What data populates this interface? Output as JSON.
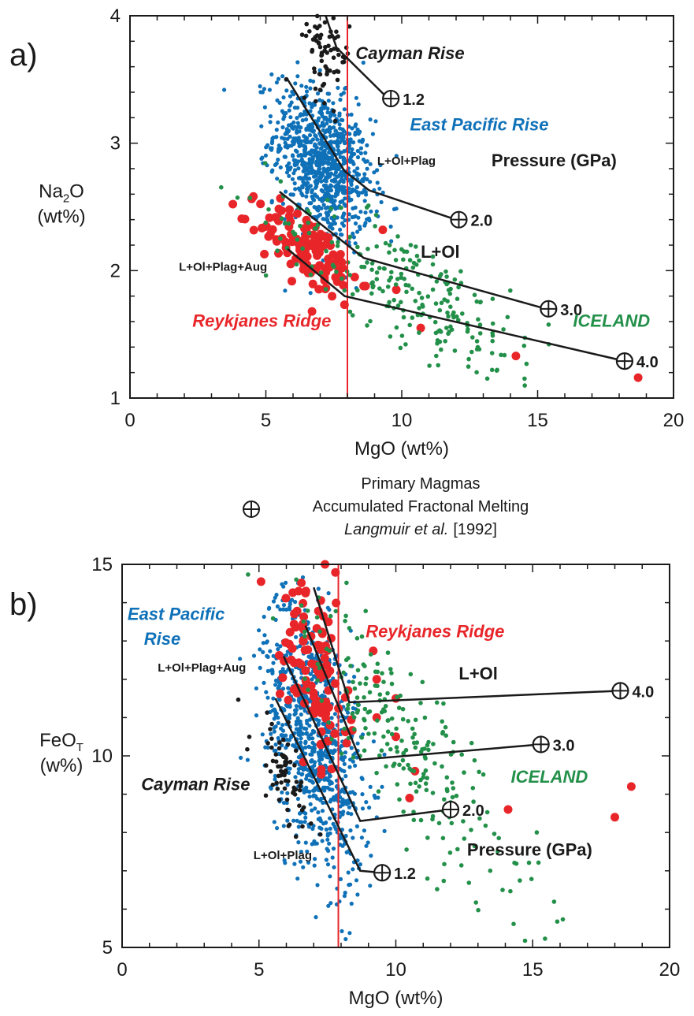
{
  "panels": [
    {
      "label": "a)",
      "legend": {
        "heading": "Primary Magmas",
        "line2": "Accumulated Fractonal Melting",
        "citation_author": "Langmuir et al.",
        "citation_year": "[1992]"
      }
    },
    {
      "label": "b)"
    }
  ],
  "colors": {
    "east_pacific_rise": "#0f71b8",
    "reykjanes_ridge": "#e8262a",
    "iceland": "#23904a",
    "cayman_rise": "#1a1a1a",
    "vertical_line": "#e8262a",
    "paths": "#1a1a1a"
  },
  "chart_data": [
    {
      "type": "scatter",
      "panel": "a)",
      "xlabel": "MgO   (wt%)",
      "ylabel": "Na2O (wt%)",
      "ylabel_parts": {
        "main": "Na",
        "sub": "2",
        "rest": "O",
        "unit": "(wt%)"
      },
      "xlim": [
        0,
        20
      ],
      "ylim": [
        1,
        4
      ],
      "x_ticks": [
        0,
        5,
        10,
        15,
        20
      ],
      "y_ticks": [
        1,
        2,
        3,
        4
      ],
      "grid": false,
      "vertical_line_x": 8,
      "series": [
        {
          "name": "East Pacific Rise",
          "color": "#0f71b8",
          "center": [
            7.1,
            2.85
          ],
          "spread": [
            0.9,
            0.28
          ],
          "count": 900,
          "radius": 2.6
        },
        {
          "name": "Reykjanes Ridge",
          "color": "#e8262a",
          "center": [
            6.6,
            2.15
          ],
          "spread": [
            0.9,
            0.14
          ],
          "count": 120,
          "radius": 5.5,
          "outliers": [
            [
              9.3,
              2.32
            ],
            [
              9.8,
              1.85
            ],
            [
              10.7,
              1.55
            ],
            [
              6.7,
              1.68
            ],
            [
              14.2,
              1.33
            ],
            [
              18.7,
              1.16
            ]
          ]
        },
        {
          "name": "ICELAND",
          "color": "#23904a",
          "center": [
            10.3,
            1.85
          ],
          "spread": [
            2.6,
            0.22
          ],
          "count": 240,
          "radius": 2.8
        },
        {
          "name": "Cayman Rise",
          "color": "#1a1a1a",
          "center": [
            7.2,
            3.75
          ],
          "spread": [
            0.45,
            0.2
          ],
          "count": 70,
          "radius": 2.8
        }
      ],
      "paths": [
        {
          "points": [
            [
              7.2,
              4.0
            ],
            [
              7.6,
              3.75
            ],
            [
              9.5,
              3.35
            ]
          ]
        },
        {
          "points": [
            [
              5.8,
              3.5
            ],
            [
              7.9,
              2.78
            ],
            [
              8.8,
              2.63
            ],
            [
              12.0,
              2.4
            ]
          ]
        },
        {
          "points": [
            [
              5.5,
              2.62
            ],
            [
              8.6,
              2.1
            ],
            [
              15.3,
              1.7
            ]
          ]
        },
        {
          "points": [
            [
              5.8,
              2.17
            ],
            [
              7.9,
              1.8
            ],
            [
              18.2,
              1.29
            ]
          ]
        }
      ],
      "pressure_markers": [
        {
          "x": 9.6,
          "y": 3.35,
          "label": "1.2"
        },
        {
          "x": 12.1,
          "y": 2.4,
          "label": "2.0"
        },
        {
          "x": 15.4,
          "y": 1.7,
          "label": "3.0"
        },
        {
          "x": 18.2,
          "y": 1.29,
          "label": "4.0"
        }
      ],
      "annotations": [
        {
          "text": "Cayman Rise",
          "x": 8.3,
          "y": 3.66,
          "color": "#1a1a1a",
          "italic": true,
          "size": 22
        },
        {
          "text": "East Pacific Rise",
          "x": 10.3,
          "y": 3.1,
          "color": "#0f71b8",
          "italic": true,
          "size": 22
        },
        {
          "text": "L+Ol+Plag",
          "x": 9.1,
          "y": 2.83,
          "color": "#1a1a1a",
          "italic": false,
          "size": 15
        },
        {
          "text": "Pressure  (GPa)",
          "x": 13.3,
          "y": 2.82,
          "color": "#1a1a1a",
          "italic": false,
          "size": 22
        },
        {
          "text": "L+Ol",
          "x": 10.7,
          "y": 2.1,
          "color": "#1a1a1a",
          "italic": false,
          "size": 22
        },
        {
          "text": "L+Ol+Plag+Aug",
          "x": 1.8,
          "y": 2.0,
          "color": "#1a1a1a",
          "italic": false,
          "size": 15
        },
        {
          "text": "Reykjanes Ridge",
          "x": 2.3,
          "y": 1.56,
          "color": "#e8262a",
          "italic": true,
          "size": 22
        },
        {
          "text": "ICELAND",
          "x": 16.3,
          "y": 1.56,
          "color": "#23904a",
          "italic": true,
          "size": 22
        }
      ]
    },
    {
      "type": "scatter",
      "panel": "b)",
      "xlabel": "MgO   (wt%)",
      "ylabel": "FeOT (w%)",
      "ylabel_parts": {
        "main": "FeO",
        "sub": "T",
        "rest": "",
        "unit": "(w%)"
      },
      "xlim": [
        0,
        20
      ],
      "ylim": [
        5,
        15
      ],
      "x_ticks": [
        0,
        5,
        10,
        15,
        20
      ],
      "y_ticks": [
        5,
        10,
        15
      ],
      "grid": false,
      "vertical_line_x": 7.9,
      "series": [
        {
          "name": "East Pacific Rise",
          "color": "#0f71b8",
          "center": [
            7.0,
            10.5
          ],
          "spread": [
            0.9,
            1.6
          ],
          "count": 900,
          "radius": 2.6
        },
        {
          "name": "Reykjanes Ridge",
          "color": "#e8262a",
          "center": [
            7.0,
            12.3
          ],
          "spread": [
            0.6,
            1.1
          ],
          "count": 110,
          "radius": 5.5,
          "outliers": [
            [
              9.3,
              12.0
            ],
            [
              10.0,
              11.5
            ],
            [
              9.3,
              11.0
            ],
            [
              10.0,
              10.5
            ],
            [
              10.7,
              9.6
            ],
            [
              10.5,
              8.9
            ],
            [
              14.1,
              8.6
            ],
            [
              18.0,
              8.4
            ],
            [
              18.6,
              9.2
            ]
          ]
        },
        {
          "name": "ICELAND",
          "color": "#23904a",
          "center": [
            10.2,
            10.4
          ],
          "spread": [
            2.5,
            1.1
          ],
          "count": 240,
          "radius": 2.8
        },
        {
          "name": "Cayman Rise",
          "color": "#1a1a1a",
          "center": [
            5.9,
            9.5
          ],
          "spread": [
            0.6,
            0.6
          ],
          "count": 70,
          "radius": 2.8
        }
      ],
      "paths": [
        {
          "points": [
            [
              5.6,
              11.5
            ],
            [
              8.7,
              7.0
            ],
            [
              9.5,
              6.95
            ]
          ]
        },
        {
          "points": [
            [
              5.9,
              12.6
            ],
            [
              8.7,
              8.3
            ],
            [
              12.0,
              8.6
            ]
          ]
        },
        {
          "points": [
            [
              6.7,
              13.4
            ],
            [
              8.7,
              9.9
            ],
            [
              15.3,
              10.3
            ]
          ]
        },
        {
          "points": [
            [
              7.0,
              14.4
            ],
            [
              8.3,
              11.4
            ],
            [
              18.2,
              11.7
            ]
          ]
        }
      ],
      "pressure_markers": [
        {
          "x": 9.5,
          "y": 6.95,
          "label": "1.2"
        },
        {
          "x": 12.0,
          "y": 8.6,
          "label": "2.0"
        },
        {
          "x": 15.3,
          "y": 10.3,
          "label": "3.0"
        },
        {
          "x": 18.2,
          "y": 11.7,
          "label": "4.0"
        }
      ],
      "annotations": [
        {
          "text": "East Pacific",
          "x": 0.2,
          "y": 13.55,
          "color": "#0f71b8",
          "italic": true,
          "size": 22
        },
        {
          "text": "Rise",
          "x": 0.8,
          "y": 12.9,
          "color": "#0f71b8",
          "italic": true,
          "size": 22
        },
        {
          "text": "L+Ol+Plag+Aug",
          "x": 1.3,
          "y": 12.2,
          "color": "#1a1a1a",
          "italic": false,
          "size": 15
        },
        {
          "text": "Reykjanes Ridge",
          "x": 8.9,
          "y": 13.1,
          "color": "#e8262a",
          "italic": true,
          "size": 22
        },
        {
          "text": "L+Ol",
          "x": 12.3,
          "y": 12.0,
          "color": "#1a1a1a",
          "italic": false,
          "size": 22
        },
        {
          "text": "Cayman Rise",
          "x": 0.7,
          "y": 9.1,
          "color": "#1a1a1a",
          "italic": true,
          "size": 22
        },
        {
          "text": "ICELAND",
          "x": 14.2,
          "y": 9.3,
          "color": "#23904a",
          "italic": true,
          "size": 22
        },
        {
          "text": "L+Ol+Plag",
          "x": 4.8,
          "y": 7.3,
          "color": "#1a1a1a",
          "italic": false,
          "size": 15
        },
        {
          "text": "Pressure  (GPa)",
          "x": 12.6,
          "y": 7.4,
          "color": "#1a1a1a",
          "italic": false,
          "size": 22
        }
      ]
    }
  ]
}
